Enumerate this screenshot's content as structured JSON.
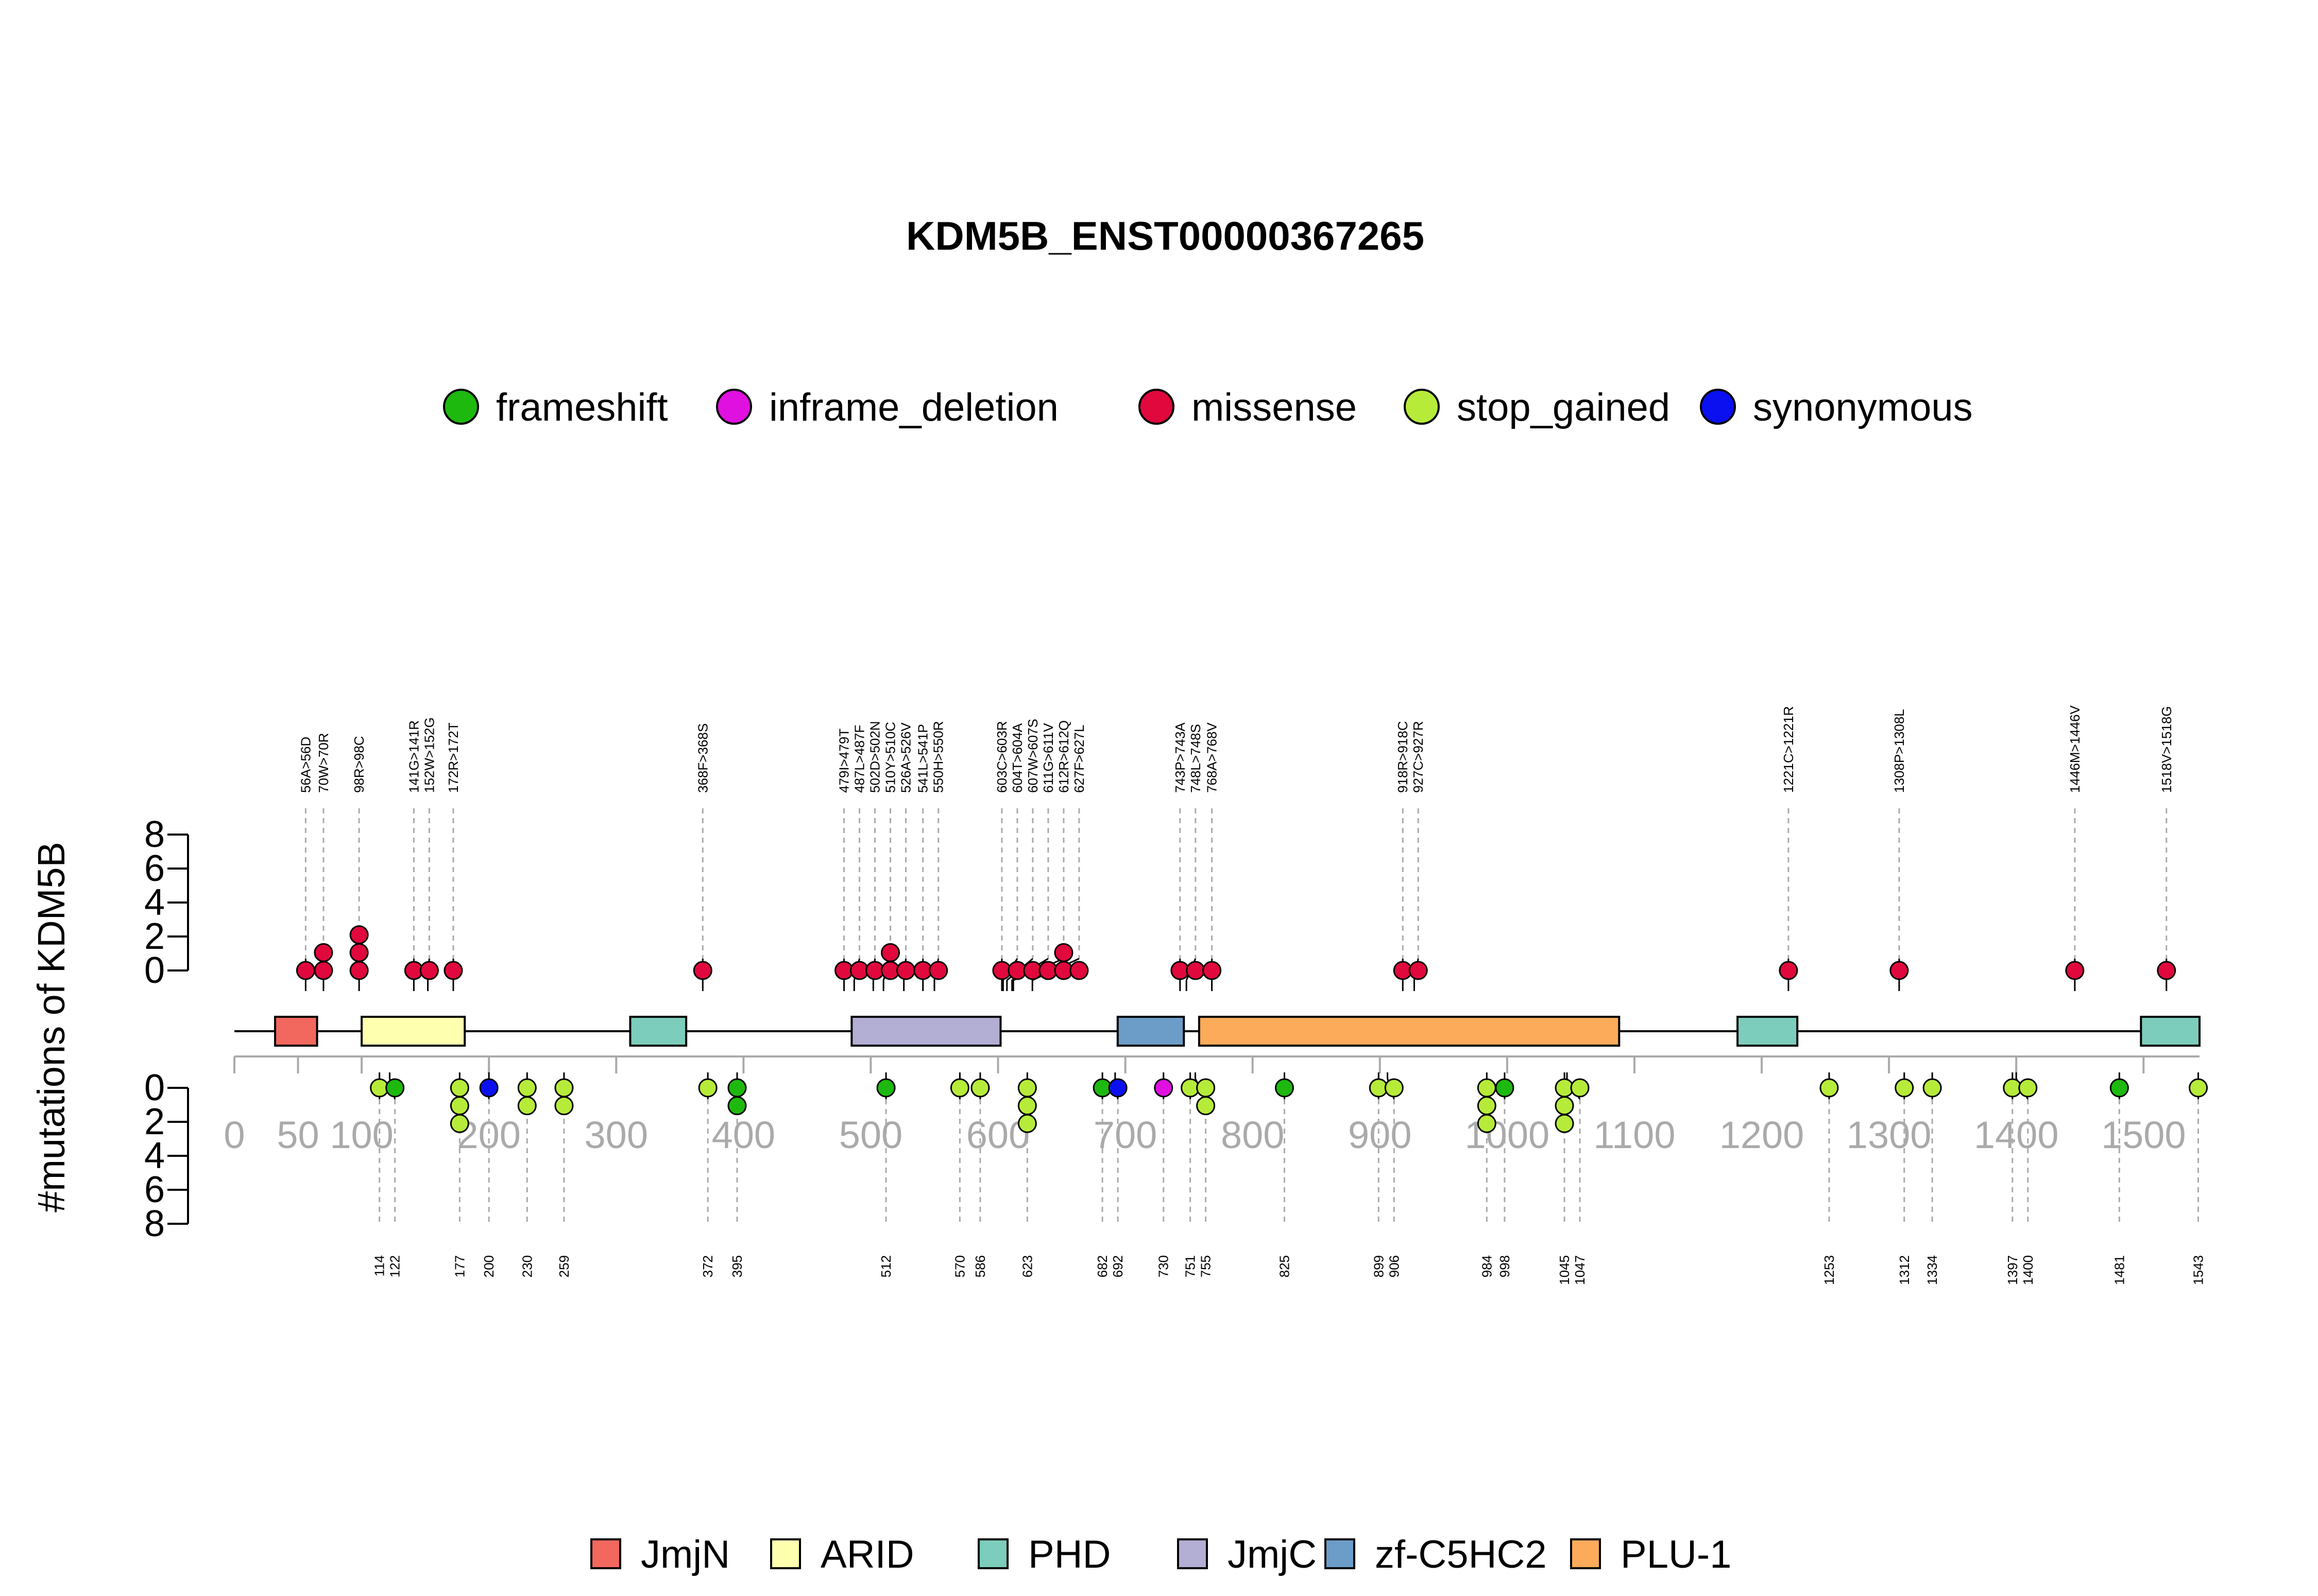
{
  "chart_data": {
    "type": "lollipop",
    "title": "KDM5B_ENST00000367265",
    "ylabel": "#mutations of KDM5B",
    "xlim": [
      0,
      1544
    ],
    "ylim": [
      0,
      8
    ],
    "x_ticks": [
      0,
      50,
      100,
      200,
      300,
      400,
      500,
      600,
      700,
      800,
      900,
      1000,
      1100,
      1200,
      1300,
      1400,
      1500
    ],
    "y_ticks": [
      0,
      2,
      4,
      6,
      8
    ],
    "mutation_legend": [
      {
        "name": "frameshift",
        "color": "#1DB90F"
      },
      {
        "name": "inframe_deletion",
        "color": "#E010E0"
      },
      {
        "name": "missense",
        "color": "#E0083C"
      },
      {
        "name": "stop_gained",
        "color": "#B6EB3A"
      },
      {
        "name": "synonymous",
        "color": "#0A10F0"
      }
    ],
    "domain_legend": [
      {
        "name": "JmjN",
        "color": "#F2675E"
      },
      {
        "name": "ARID",
        "color": "#FFFFB0"
      },
      {
        "name": "PHD",
        "color": "#7CCDBB"
      },
      {
        "name": "JmjC",
        "color": "#B2AED4"
      },
      {
        "name": "zf-C5HC2",
        "color": "#6C9CC8"
      },
      {
        "name": "PLU-1",
        "color": "#FCAB5A"
      }
    ],
    "domains": [
      {
        "name": "JmjN",
        "start": 32,
        "end": 65
      },
      {
        "name": "ARID",
        "start": 100,
        "end": 181
      },
      {
        "name": "PHD",
        "start": 311,
        "end": 355
      },
      {
        "name": "JmjC",
        "start": 485,
        "end": 602
      },
      {
        "name": "zf-C5HC2",
        "start": 694,
        "end": 746
      },
      {
        "name": "PLU-1",
        "start": 758,
        "end": 1088
      },
      {
        "name": "PHD",
        "start": 1181,
        "end": 1228
      },
      {
        "name": "PHD",
        "start": 1498,
        "end": 1544
      }
    ],
    "top_mutations": [
      {
        "pos": 56,
        "label": "56A>56D",
        "count": 1,
        "type": "missense"
      },
      {
        "pos": 70,
        "label": "70W>70R",
        "count": 2,
        "type": "missense"
      },
      {
        "pos": 98,
        "label": "98R>98C",
        "count": 3,
        "type": "missense"
      },
      {
        "pos": 141,
        "label": "141G>141R",
        "count": 1,
        "type": "missense"
      },
      {
        "pos": 152,
        "label": "152W>152G",
        "count": 1,
        "type": "missense"
      },
      {
        "pos": 172,
        "label": "172R>172T",
        "count": 1,
        "type": "missense"
      },
      {
        "pos": 368,
        "label": "368F>368S",
        "count": 1,
        "type": "missense"
      },
      {
        "pos": 479,
        "label": "479I>479T",
        "count": 1,
        "type": "missense"
      },
      {
        "pos": 487,
        "label": "487L>487F",
        "count": 1,
        "type": "missense"
      },
      {
        "pos": 502,
        "label": "502D>502N",
        "count": 1,
        "type": "missense"
      },
      {
        "pos": 510,
        "label": "510Y>510C",
        "count": 2,
        "type": "missense"
      },
      {
        "pos": 526,
        "label": "526A>526V",
        "count": 1,
        "type": "missense"
      },
      {
        "pos": 541,
        "label": "541L>541P",
        "count": 1,
        "type": "missense"
      },
      {
        "pos": 550,
        "label": "550H>550R",
        "count": 1,
        "type": "missense"
      },
      {
        "pos": 603,
        "label": "603C>603R",
        "count": 1,
        "type": "missense"
      },
      {
        "pos": 604,
        "label": "604T>604A",
        "count": 1,
        "type": "missense"
      },
      {
        "pos": 607,
        "label": "607W>607S",
        "count": 1,
        "type": "missense"
      },
      {
        "pos": 611,
        "label": "611G>611V",
        "count": 1,
        "type": "missense"
      },
      {
        "pos": 612,
        "label": "612R>612Q",
        "count": 2,
        "type": "missense"
      },
      {
        "pos": 627,
        "label": "627F>627L",
        "count": 1,
        "type": "missense"
      },
      {
        "pos": 743,
        "label": "743P>743A",
        "count": 1,
        "type": "missense"
      },
      {
        "pos": 748,
        "label": "748L>748S",
        "count": 1,
        "type": "missense"
      },
      {
        "pos": 768,
        "label": "768A>768V",
        "count": 1,
        "type": "missense"
      },
      {
        "pos": 918,
        "label": "918R>918C",
        "count": 1,
        "type": "missense"
      },
      {
        "pos": 927,
        "label": "927C>927R",
        "count": 1,
        "type": "missense"
      },
      {
        "pos": 1221,
        "label": "1221C>1221R",
        "count": 1,
        "type": "missense"
      },
      {
        "pos": 1308,
        "label": "1308P>1308L",
        "count": 1,
        "type": "missense"
      },
      {
        "pos": 1446,
        "label": "1446M>1446V",
        "count": 1,
        "type": "missense"
      },
      {
        "pos": 1518,
        "label": "1518V>1518G",
        "count": 1,
        "type": "missense"
      }
    ],
    "bottom_mutations": [
      {
        "pos": 114,
        "label": "114",
        "types": [
          "stop_gained"
        ]
      },
      {
        "pos": 122,
        "label": "122",
        "types": [
          "frameshift"
        ]
      },
      {
        "pos": 177,
        "label": "177",
        "types": [
          "stop_gained",
          "stop_gained",
          "stop_gained"
        ]
      },
      {
        "pos": 200,
        "label": "200",
        "types": [
          "synonymous"
        ]
      },
      {
        "pos": 230,
        "label": "230",
        "types": [
          "stop_gained",
          "stop_gained"
        ]
      },
      {
        "pos": 259,
        "label": "259",
        "types": [
          "stop_gained",
          "stop_gained"
        ]
      },
      {
        "pos": 372,
        "label": "372",
        "types": [
          "stop_gained"
        ]
      },
      {
        "pos": 395,
        "label": "395",
        "types": [
          "frameshift",
          "frameshift"
        ]
      },
      {
        "pos": 512,
        "label": "512",
        "types": [
          "frameshift"
        ]
      },
      {
        "pos": 570,
        "label": "570",
        "types": [
          "stop_gained"
        ]
      },
      {
        "pos": 586,
        "label": "586",
        "types": [
          "stop_gained"
        ]
      },
      {
        "pos": 623,
        "label": "623",
        "types": [
          "stop_gained",
          "stop_gained",
          "stop_gained"
        ]
      },
      {
        "pos": 682,
        "label": "682",
        "types": [
          "frameshift"
        ]
      },
      {
        "pos": 692,
        "label": "692",
        "types": [
          "synonymous"
        ]
      },
      {
        "pos": 730,
        "label": "730",
        "types": [
          "inframe_deletion"
        ]
      },
      {
        "pos": 751,
        "label": "751",
        "types": [
          "stop_gained"
        ]
      },
      {
        "pos": 755,
        "label": "755",
        "types": [
          "stop_gained",
          "stop_gained"
        ]
      },
      {
        "pos": 825,
        "label": "825",
        "types": [
          "frameshift"
        ]
      },
      {
        "pos": 899,
        "label": "899",
        "types": [
          "stop_gained"
        ]
      },
      {
        "pos": 906,
        "label": "906",
        "types": [
          "stop_gained"
        ]
      },
      {
        "pos": 984,
        "label": "984",
        "types": [
          "stop_gained",
          "stop_gained",
          "stop_gained"
        ]
      },
      {
        "pos": 998,
        "label": "998",
        "types": [
          "frameshift"
        ]
      },
      {
        "pos": 1045,
        "label": "1045",
        "types": [
          "stop_gained",
          "stop_gained",
          "stop_gained"
        ]
      },
      {
        "pos": 1047,
        "label": "1047",
        "types": [
          "stop_gained"
        ]
      },
      {
        "pos": 1253,
        "label": "1253",
        "types": [
          "stop_gained"
        ]
      },
      {
        "pos": 1312,
        "label": "1312",
        "types": [
          "stop_gained"
        ]
      },
      {
        "pos": 1334,
        "label": "1334",
        "types": [
          "stop_gained"
        ]
      },
      {
        "pos": 1397,
        "label": "1397",
        "types": [
          "stop_gained"
        ]
      },
      {
        "pos": 1400,
        "label": "1400",
        "types": [
          "stop_gained"
        ]
      },
      {
        "pos": 1481,
        "label": "1481",
        "types": [
          "frameshift"
        ]
      },
      {
        "pos": 1543,
        "label": "1543",
        "types": [
          "stop_gained"
        ]
      }
    ]
  }
}
